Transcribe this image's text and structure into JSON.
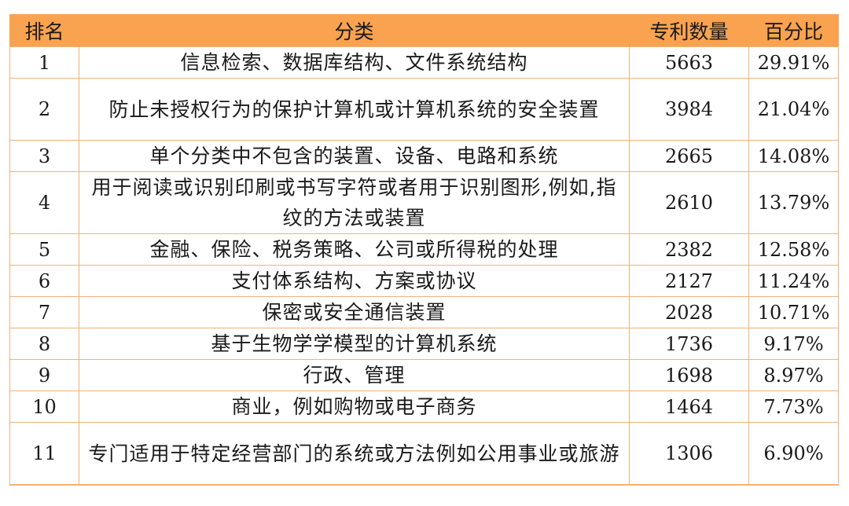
{
  "table": {
    "headers": [
      "排名",
      "分类",
      "专利数量",
      "百分比"
    ],
    "rows": [
      {
        "rank": "1",
        "category": "信息检索、数据库结构、文件系统结构",
        "count": "5663",
        "percent": "29.91%"
      },
      {
        "rank": "2",
        "category": "防止未授权行为的保护计算机或计算机系统的安全装置",
        "count": "3984",
        "percent": "21.04%"
      },
      {
        "rank": "3",
        "category": "单个分类中不包含的装置、设备、电路和系统",
        "count": "2665",
        "percent": "14.08%"
      },
      {
        "rank": "4",
        "category": "用于阅读或识别印刷或书写字符或者用于识别图形,例如,指纹的方法或装置",
        "count": "2610",
        "percent": "13.79%"
      },
      {
        "rank": "5",
        "category": "金融、保险、税务策略、公司或所得税的处理",
        "count": "2382",
        "percent": "12.58%"
      },
      {
        "rank": "6",
        "category": "支付体系结构、方案或协议",
        "count": "2127",
        "percent": "11.24%"
      },
      {
        "rank": "7",
        "category": "保密或安全通信装置",
        "count": "2028",
        "percent": "10.71%"
      },
      {
        "rank": "8",
        "category": "基于生物学学模型的计算机系统",
        "count": "1736",
        "percent": "9.17%"
      },
      {
        "rank": "9",
        "category": "行政、管理",
        "count": "1698",
        "percent": "8.97%"
      },
      {
        "rank": "10",
        "category": "商业，例如购物或电子商务",
        "count": "1464",
        "percent": "7.73%"
      },
      {
        "rank": "11",
        "category": "专门适用于特定经营部门的系统或方法例如公用事业或旅游",
        "count": "1306",
        "percent": "6.90%"
      }
    ]
  }
}
